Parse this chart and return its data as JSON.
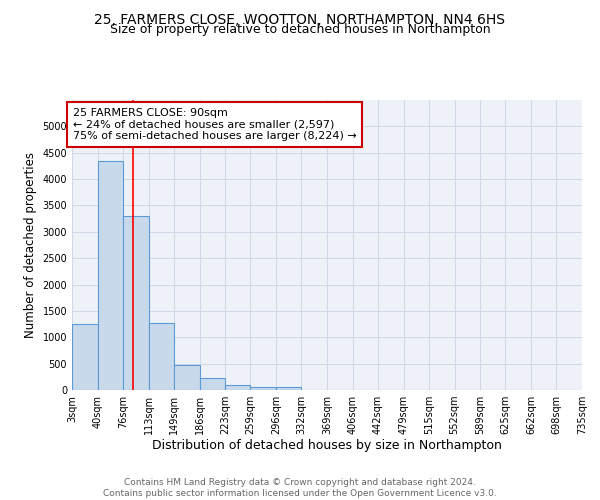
{
  "title": "25, FARMERS CLOSE, WOOTTON, NORTHAMPTON, NN4 6HS",
  "subtitle": "Size of property relative to detached houses in Northampton",
  "xlabel": "Distribution of detached houses by size in Northampton",
  "ylabel": "Number of detached properties",
  "footer_line1": "Contains HM Land Registry data © Crown copyright and database right 2024.",
  "footer_line2": "Contains public sector information licensed under the Open Government Licence v3.0.",
  "bins": [
    3,
    40,
    76,
    113,
    149,
    186,
    223,
    259,
    296,
    332,
    369,
    406,
    442,
    479,
    515,
    552,
    589,
    625,
    662,
    698,
    735
  ],
  "bin_labels": [
    "3sqm",
    "40sqm",
    "76sqm",
    "113sqm",
    "149sqm",
    "186sqm",
    "223sqm",
    "259sqm",
    "296sqm",
    "332sqm",
    "369sqm",
    "406sqm",
    "442sqm",
    "479sqm",
    "515sqm",
    "552sqm",
    "589sqm",
    "625sqm",
    "662sqm",
    "698sqm",
    "735sqm"
  ],
  "values": [
    1250,
    4350,
    3300,
    1270,
    475,
    225,
    100,
    65,
    65,
    0,
    0,
    0,
    0,
    0,
    0,
    0,
    0,
    0,
    0,
    0
  ],
  "bar_color": "#c9d9ec",
  "bar_edge_color": "#5b9bd5",
  "grid_color": "#d0d8e8",
  "background_color": "#eef2f8",
  "red_line_x": 90,
  "annotation_text_line1": "25 FARMERS CLOSE: 90sqm",
  "annotation_text_line2": "← 24% of detached houses are smaller (2,597)",
  "annotation_text_line3": "75% of semi-detached houses are larger (8,224) →",
  "annotation_box_color": "#ffffff",
  "annotation_box_edge_color": "#cc0000",
  "ylim": [
    0,
    5500
  ],
  "yticks": [
    0,
    500,
    1000,
    1500,
    2000,
    2500,
    3000,
    3500,
    4000,
    4500,
    5000
  ],
  "title_fontsize": 10,
  "subtitle_fontsize": 9,
  "ylabel_fontsize": 8.5,
  "xlabel_fontsize": 9,
  "tick_fontsize": 7,
  "annotation_fontsize": 8,
  "footer_fontsize": 6.5
}
